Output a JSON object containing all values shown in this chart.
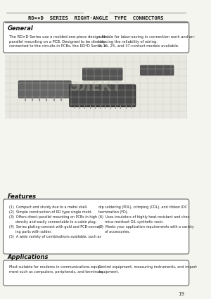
{
  "title": "RD××D  SERIES  RIGHT-ANGLE  TYPE  CONNECTORS",
  "bg_color": "#f5f5f0",
  "page_number": "19",
  "general_heading": "General",
  "general_text_left": "The RD×D Series use a molded one-piece design for\nparallel mounting on a PCB. Designed to be directly\nconnected to the circuits in PCBs, the RD*D Series is",
  "general_text_right": "suitable for labor-saving in connection work and en-\nhancing the reliability of wiring.\n9, 15, 25, and 37-contact models available.",
  "features_heading": "Features",
  "features_left": [
    "(1)  Compact and sturdy due to a metal shell.",
    "(2)  Simple construction of RD type single mold.",
    "(3)  Offers direct parallel mounting on PCBs in high\n      density and easily connectable to a cable plug.",
    "(4)  Series plating-connect with gold and PCB-connect-\n      ing parts with solder.",
    "(5)  A wide variety of combinations available, such as"
  ],
  "features_right": [
    "dip soldering (PDL), crimping (CDL), and ribbon IDC\ntermination (FD).",
    "(6)  Uses insulators of highly heat-resistant and ches-\n      mica-resistant GIL synthetic resin.",
    "(7)  Meets your application requirements with a variety\n      of accessories."
  ],
  "applications_heading": "Applications",
  "applications_text_left": "Most suitable for modems in communications equip-\nment such as computers, peripherals, and terminals.",
  "applications_text_right": "Control equipment, measuring instruments, and import\nequipment."
}
